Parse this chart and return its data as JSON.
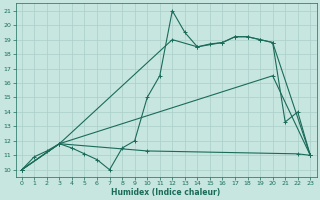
{
  "xlabel": "Humidex (Indice chaleur)",
  "background_color": "#c8e6e0",
  "grid_color": "#aacfc8",
  "line_color": "#1a6b5a",
  "xlim": [
    -0.5,
    23.5
  ],
  "ylim": [
    9.5,
    21.5
  ],
  "xticks": [
    0,
    1,
    2,
    3,
    4,
    5,
    6,
    7,
    8,
    9,
    10,
    11,
    12,
    13,
    14,
    15,
    16,
    17,
    18,
    19,
    20,
    21,
    22,
    23
  ],
  "yticks": [
    10,
    11,
    12,
    13,
    14,
    15,
    16,
    17,
    18,
    19,
    20,
    21
  ],
  "series": [
    {
      "x": [
        0,
        1,
        2,
        3,
        4,
        5,
        6,
        7,
        8,
        9,
        10,
        11,
        12,
        13,
        14,
        15,
        16,
        17,
        18,
        19,
        20,
        21,
        22,
        23
      ],
      "y": [
        10.0,
        10.9,
        11.3,
        11.8,
        11.5,
        11.1,
        10.7,
        10.0,
        11.5,
        12.0,
        15.0,
        16.5,
        21.0,
        19.5,
        18.5,
        18.7,
        18.8,
        19.2,
        19.2,
        19.0,
        18.8,
        13.3,
        14.0,
        11.0
      ]
    },
    {
      "comment": "upper smooth line from 0->3->12->19->20->23",
      "x": [
        0,
        3,
        12,
        14,
        16,
        17,
        18,
        19,
        20,
        23
      ],
      "y": [
        10.0,
        11.8,
        19.0,
        18.5,
        18.8,
        19.2,
        19.2,
        19.0,
        18.8,
        11.0
      ]
    },
    {
      "x": [
        0,
        3,
        20,
        23
      ],
      "y": [
        10.0,
        11.8,
        16.5,
        11.0
      ]
    },
    {
      "x": [
        0,
        3,
        10,
        22,
        23
      ],
      "y": [
        10.0,
        11.8,
        11.3,
        11.1,
        11.0
      ]
    }
  ]
}
